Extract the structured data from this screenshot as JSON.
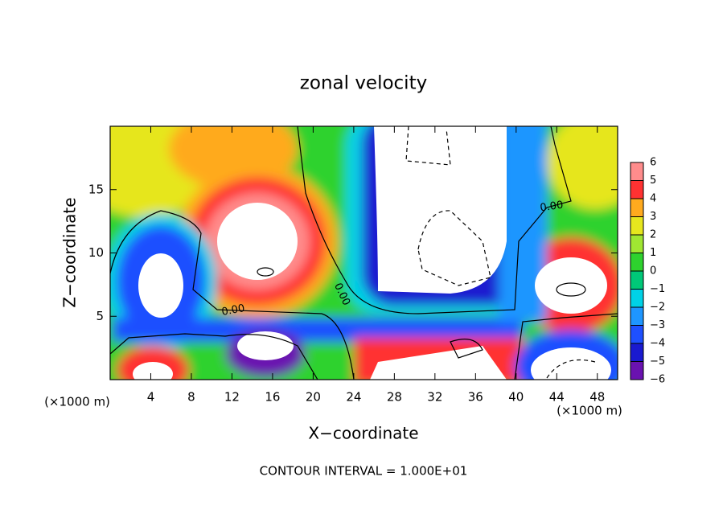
{
  "chart_data": {
    "type": "contour",
    "title": "zonal velocity",
    "xlabel": "X−coordinate",
    "ylabel": "Z−coordinate",
    "x_unit": "(×1000 m)",
    "x_unit_right": "(×1000 m)",
    "footnote": "CONTOUR INTERVAL = 1.000E+01",
    "xlim": [
      0,
      50
    ],
    "xticks": [
      4,
      8,
      12,
      16,
      20,
      24,
      28,
      32,
      36,
      40,
      44,
      48
    ],
    "ylim": [
      0,
      20
    ],
    "yticks": [
      5,
      10,
      15
    ],
    "contour_labels": [
      "0.00",
      "0.00",
      "0.00"
    ],
    "colorbar": {
      "lim": [
        -6,
        6
      ],
      "ticks": [
        {
          "value": -6,
          "label": "−6"
        },
        {
          "value": -5,
          "label": "−5"
        },
        {
          "value": -4,
          "label": "−4"
        },
        {
          "value": -3,
          "label": "−3"
        },
        {
          "value": -2,
          "label": "−2"
        },
        {
          "value": -1,
          "label": "−1"
        },
        0,
        1,
        2,
        3,
        4,
        5,
        6
      ],
      "colors": [
        "#6a12b0",
        "#1a1ad0",
        "#1e50ff",
        "#1e96ff",
        "#00d2e6",
        "#00c878",
        "#2ed22e",
        "#a0e632",
        "#e6e61e",
        "#ffaa1e",
        "#ff3232",
        "#ff8c8c"
      ]
    }
  }
}
